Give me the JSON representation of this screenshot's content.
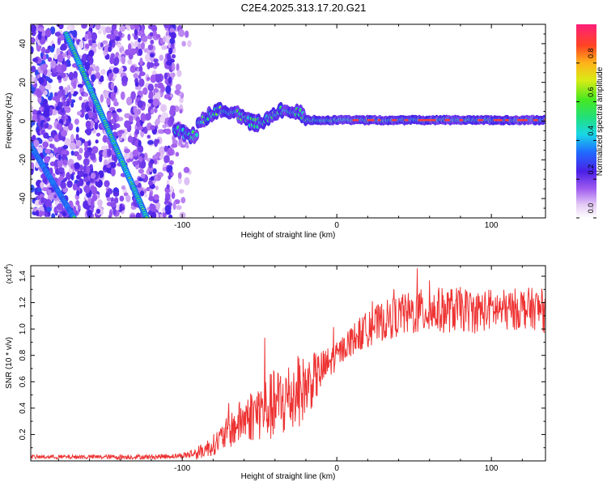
{
  "title": "C2E4.2025.313.17.20.G21",
  "chart_data": [
    {
      "type": "heatmap",
      "xlabel": "Height of straight line (km)",
      "ylabel": "Frequency (Hz)",
      "xlim": [
        -198,
        135
      ],
      "ylim": [
        -50,
        50
      ],
      "xticks": [
        -100,
        0,
        100
      ],
      "yticks": [
        -40,
        -20,
        0,
        20,
        40
      ],
      "colorbar": {
        "label": "Normalized spectral amplitude",
        "range": [
          0,
          1
        ],
        "ticks": [
          "0.0",
          "0.2",
          "0.4",
          "0.6",
          "0.8"
        ],
        "tick_values": [
          0.0,
          0.2,
          0.4,
          0.6,
          0.8
        ]
      },
      "features": {
        "diagonal_track_1": {
          "from": [
            -175,
            45
          ],
          "to": [
            -123,
            -50
          ]
        },
        "diagonal_track_2": {
          "from": [
            -200,
            -10
          ],
          "to": [
            -170,
            -50
          ]
        },
        "main_line_start": -105,
        "main_line_freq_hz": 0
      }
    },
    {
      "type": "line",
      "xlabel": "Height of straight line (km)",
      "ylabel": "SNR (10 * v/v)",
      "y_scale_label": "(x10",
      "y_scale_exp": "4",
      "xlim": [
        -198,
        135
      ],
      "ylim": [
        0,
        1.48
      ],
      "xticks": [
        -100,
        0,
        100
      ],
      "yticks": [
        "0.2",
        "0.4",
        "0.6",
        "0.8",
        "1.0",
        "1.2",
        "1.4"
      ],
      "ytick_values": [
        0.2,
        0.4,
        0.6,
        0.8,
        1.0,
        1.2,
        1.4
      ],
      "series_color": "#ee3333",
      "envelope": {
        "x": [
          -198,
          -160,
          -120,
          -100,
          -90,
          -80,
          -70,
          -60,
          -50,
          -40,
          -30,
          -20,
          -10,
          0,
          10,
          20,
          30,
          40,
          50,
          60,
          70,
          80,
          90,
          100,
          110,
          120,
          130,
          135
        ],
        "y": [
          0.03,
          0.03,
          0.03,
          0.04,
          0.06,
          0.12,
          0.22,
          0.32,
          0.38,
          0.42,
          0.48,
          0.56,
          0.68,
          0.8,
          0.92,
          1.0,
          1.06,
          1.1,
          1.12,
          1.14,
          1.14,
          1.15,
          1.13,
          1.15,
          1.14,
          1.16,
          1.15,
          1.12
        ]
      },
      "noise_amplitude": {
        "x": [
          -198,
          -100,
          -80,
          -60,
          -40,
          -30,
          -20,
          -10,
          0,
          20,
          60,
          100,
          135
        ],
        "y": [
          0.015,
          0.02,
          0.08,
          0.18,
          0.28,
          0.3,
          0.24,
          0.16,
          0.1,
          0.14,
          0.18,
          0.16,
          0.16
        ]
      }
    }
  ]
}
